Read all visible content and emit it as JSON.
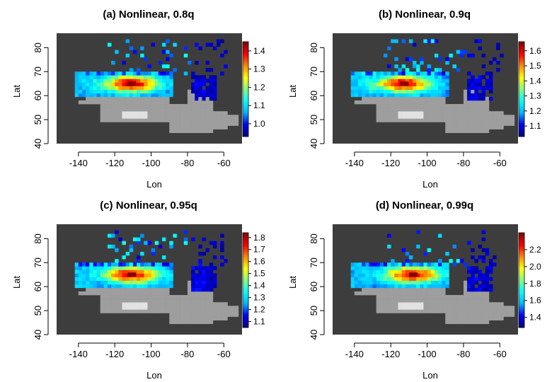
{
  "figure": {
    "colors": {
      "background": "#3d3d3d",
      "land": "#9e9e9e",
      "lake": "#e2e2e2",
      "colormap": [
        "#00008b",
        "#0000ff",
        "#00b4ff",
        "#00ffff",
        "#7fff7f",
        "#ffff00",
        "#ff8c00",
        "#ff0000",
        "#8b0000"
      ]
    }
  },
  "chart_data": [
    {
      "type": "heatmap",
      "title": "(a) Nonlinear, 0.8q",
      "xlabel": "Lon",
      "ylabel": "Lat",
      "xlim": [
        -152,
        -50
      ],
      "ylim": [
        40,
        86
      ],
      "xticks": [
        "-140",
        "-120",
        "-100",
        "-80",
        "-60"
      ],
      "xtick_values": [
        -140,
        -120,
        -100,
        -80,
        -60
      ],
      "yticks": [
        "40",
        "50",
        "60",
        "70",
        "80"
      ],
      "ytick_values": [
        40,
        50,
        60,
        70,
        80
      ],
      "colorbar": {
        "min": 0.93,
        "max": 1.45,
        "ticks": [
          "1.0",
          "1.1",
          "1.2",
          "1.3",
          "1.4"
        ],
        "tick_values": [
          1.0,
          1.1,
          1.2,
          1.3,
          1.4
        ]
      },
      "hotspot": {
        "lon": -111,
        "lat": 65,
        "value": 1.45
      },
      "seed": 11
    },
    {
      "type": "heatmap",
      "title": "(b) Nonlinear, 0.9q",
      "xlabel": "Lon",
      "ylabel": "Lat",
      "xlim": [
        -152,
        -50
      ],
      "ylim": [
        40,
        86
      ],
      "xticks": [
        "-140",
        "-120",
        "-100",
        "-80",
        "-60"
      ],
      "xtick_values": [
        -140,
        -120,
        -100,
        -80,
        -60
      ],
      "yticks": [
        "40",
        "50",
        "60",
        "70",
        "80"
      ],
      "ytick_values": [
        40,
        50,
        60,
        70,
        80
      ],
      "colorbar": {
        "min": 1.03,
        "max": 1.66,
        "ticks": [
          "1.1",
          "1.2",
          "1.3",
          "1.4",
          "1.5",
          "1.6"
        ],
        "tick_values": [
          1.1,
          1.2,
          1.3,
          1.4,
          1.5,
          1.6
        ]
      },
      "hotspot": {
        "lon": -113,
        "lat": 65,
        "value": 1.65
      },
      "seed": 23
    },
    {
      "type": "heatmap",
      "title": "(c) Nonlinear, 0.95q",
      "xlabel": "Lon",
      "ylabel": "Lat",
      "xlim": [
        -152,
        -50
      ],
      "ylim": [
        40,
        86
      ],
      "xticks": [
        "-140",
        "-120",
        "-100",
        "-80",
        "-60"
      ],
      "xtick_values": [
        -140,
        -120,
        -100,
        -80,
        -60
      ],
      "yticks": [
        "40",
        "50",
        "60",
        "70",
        "80"
      ],
      "ytick_values": [
        40,
        50,
        60,
        70,
        80
      ],
      "colorbar": {
        "min": 1.05,
        "max": 1.84,
        "ticks": [
          "1.1",
          "1.2",
          "1.3",
          "1.4",
          "1.5",
          "1.6",
          "1.7",
          "1.8"
        ],
        "tick_values": [
          1.1,
          1.2,
          1.3,
          1.4,
          1.5,
          1.6,
          1.7,
          1.8
        ]
      },
      "hotspot": {
        "lon": -111,
        "lat": 65,
        "value": 1.83
      },
      "seed": 37
    },
    {
      "type": "heatmap",
      "title": "(d) Nonlinear, 0.99q",
      "xlabel": "Lon",
      "ylabel": "Lat",
      "xlim": [
        -152,
        -50
      ],
      "ylim": [
        40,
        86
      ],
      "xticks": [
        "-140",
        "-120",
        "-100",
        "-80",
        "-60"
      ],
      "xtick_values": [
        -140,
        -120,
        -100,
        -80,
        -60
      ],
      "yticks": [
        "40",
        "50",
        "60",
        "70",
        "80"
      ],
      "ytick_values": [
        40,
        50,
        60,
        70,
        80
      ],
      "colorbar": {
        "min": 1.28,
        "max": 2.4,
        "ticks": [
          "1.4",
          "1.6",
          "1.8",
          "2.0",
          "2.2"
        ],
        "tick_values": [
          1.4,
          1.6,
          1.8,
          2.0,
          2.2
        ]
      },
      "hotspot": {
        "lon": -108,
        "lat": 65,
        "value": 2.38
      },
      "seed": 53
    }
  ]
}
